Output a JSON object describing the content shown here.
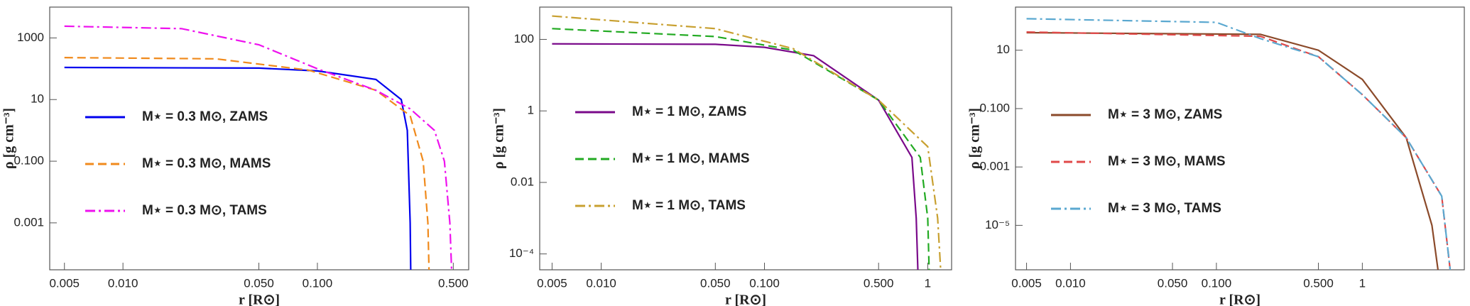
{
  "chart_data": [
    {
      "type": "line",
      "xlabel": "r [R⊙]",
      "ylabel": "ρ [g cm⁻³]",
      "xscale": "log",
      "yscale": "log",
      "xlim": [
        0.0042,
        0.6
      ],
      "ylim": [
        3e-05,
        10000
      ],
      "xticks": [
        0.005,
        {
          "value": 0.01,
          "label": "0.010"
        },
        {
          "value": 0.05,
          "label": "0.050"
        },
        {
          "value": 0.1,
          "label": "0.100"
        },
        {
          "value": 0.5,
          "label": "0.500"
        }
      ],
      "yticks": [
        1000,
        10,
        {
          "value": 0.1,
          "label": "0.100"
        },
        0.001
      ],
      "series": [
        {
          "name": "M⋆ = 0.3 M⊙, ZAMS",
          "color": "#0000ee",
          "style": "solid",
          "x": [
            0.005,
            0.05,
            0.1,
            0.2,
            0.27,
            0.29,
            0.3,
            0.302
          ],
          "values": [
            110,
            105,
            85,
            45,
            10,
            1,
            0.001,
            3e-05
          ]
        },
        {
          "name": "M⋆ = 0.3 M⊙, MAMS",
          "color": "#f08a1c",
          "style": "dashed",
          "x": [
            0.005,
            0.03,
            0.09,
            0.2,
            0.3,
            0.35,
            0.37,
            0.375
          ],
          "values": [
            230,
            210,
            90,
            20,
            3,
            0.1,
            0.001,
            3e-05
          ]
        },
        {
          "name": "M⋆ = 0.3 M⊙, TAMS",
          "color": "#ee11ee",
          "style": "dashdot",
          "x": [
            0.005,
            0.02,
            0.05,
            0.1,
            0.2,
            0.3,
            0.4,
            0.45,
            0.48,
            0.49
          ],
          "values": [
            2400,
            2000,
            600,
            100,
            20,
            5,
            1,
            0.1,
            0.001,
            3e-05
          ]
        }
      ]
    },
    {
      "type": "line",
      "xlabel": "r [R⊙]",
      "ylabel": "ρ [g cm⁻³]",
      "xscale": "log",
      "yscale": "log",
      "xlim": [
        0.0042,
        1.4
      ],
      "ylim": [
        3.6e-05,
        800
      ],
      "xticks": [
        0.005,
        {
          "value": 0.01,
          "label": "0.010"
        },
        {
          "value": 0.05,
          "label": "0.050"
        },
        {
          "value": 0.1,
          "label": "0.100"
        },
        {
          "value": 0.5,
          "label": "0.500"
        },
        1
      ],
      "yticks": [
        100,
        1,
        0.01,
        {
          "value": 0.0001,
          "label": "10⁻⁴"
        }
      ],
      "series": [
        {
          "name": "M⋆ = 1 M⊙, ZAMS",
          "color": "#7a0a8a",
          "style": "solid",
          "x": [
            0.005,
            0.05,
            0.1,
            0.2,
            0.5,
            0.8,
            0.85,
            0.87
          ],
          "values": [
            75,
            73,
            60,
            35,
            2,
            0.05,
            0.001,
            3.6e-05
          ]
        },
        {
          "name": "M⋆ = 1 M⊙, MAMS",
          "color": "#22aa22",
          "style": "dashed",
          "x": [
            0.005,
            0.05,
            0.15,
            0.5,
            0.9,
            1.0,
            1.02
          ],
          "values": [
            200,
            120,
            50,
            2,
            0.05,
            0.001,
            3.6e-05
          ]
        },
        {
          "name": "M⋆ = 1 M⊙, TAMS",
          "color": "#c8a030",
          "style": "dashdot",
          "x": [
            0.005,
            0.05,
            0.15,
            0.5,
            1,
            1.15,
            1.2
          ],
          "values": [
            450,
            200,
            55,
            2,
            0.1,
            0.001,
            3.6e-05
          ]
        }
      ]
    },
    {
      "type": "line",
      "xlabel": "r [R⊙]",
      "ylabel": "ρ [g cm⁻³]",
      "xscale": "log",
      "yscale": "log",
      "xlim": [
        0.0042,
        5
      ],
      "ylim": [
        3e-07,
        300
      ],
      "xticks": [
        0.005,
        {
          "value": 0.01,
          "label": "0.010"
        },
        {
          "value": 0.05,
          "label": "0.050"
        },
        {
          "value": 0.1,
          "label": "0.100"
        },
        {
          "value": 0.5,
          "label": "0.500"
        },
        1
      ],
      "yticks": [
        10,
        {
          "value": 0.1,
          "label": "0.100"
        },
        0.001,
        {
          "value": 1e-05,
          "label": "10⁻⁵"
        }
      ],
      "series": [
        {
          "name": "M⋆ = 3 M⊙, ZAMS",
          "color": "#8b4a2a",
          "style": "solid",
          "x": [
            0.005,
            0.2,
            0.5,
            1,
            2,
            3,
            3.3
          ],
          "values": [
            40,
            35,
            10,
            1,
            0.01,
            1e-05,
            3e-07
          ]
        },
        {
          "name": "M⋆ = 3 M⊙, MAMS",
          "color": "#e04848",
          "style": "dashed",
          "x": [
            0.005,
            0.2,
            0.5,
            1,
            2,
            3.5,
            4
          ],
          "values": [
            42,
            30,
            6,
            0.3,
            0.01,
            0.0001,
            3e-07
          ]
        },
        {
          "name": "M⋆ = 3 M⊙, TAMS",
          "color": "#5aa8d0",
          "style": "dashdot",
          "x": [
            0.005,
            0.1,
            0.2,
            0.5,
            1,
            2,
            3.5,
            4
          ],
          "values": [
            120,
            90,
            25,
            6,
            0.3,
            0.01,
            0.0001,
            3e-07
          ]
        }
      ]
    }
  ]
}
